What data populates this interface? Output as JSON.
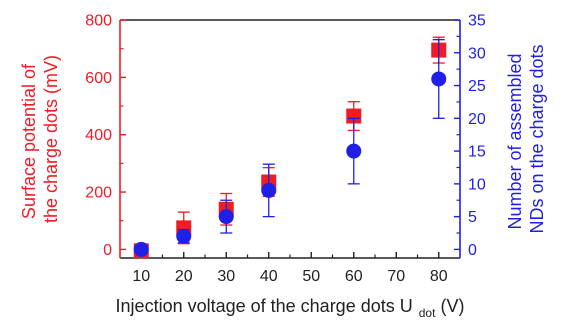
{
  "chart_data": {
    "type": "scatter",
    "x_axis": {
      "label_main": "Injection voltage of the charge dots U",
      "label_sub": "dot",
      "label_unit": " (V)",
      "range": [
        5,
        85
      ],
      "ticks": [
        10,
        20,
        30,
        40,
        50,
        60,
        70,
        80
      ]
    },
    "y_left": {
      "label_lines": [
        "Surface potential of",
        "the charge dots (mV)"
      ],
      "range": [
        -30,
        800
      ],
      "ticks": [
        0,
        200,
        400,
        600,
        800
      ],
      "color": "#ee1c25"
    },
    "y_right": {
      "label_lines": [
        "Number of assembled",
        "NDs on the charge dots"
      ],
      "range": [
        -1.3125,
        35
      ],
      "ticks": [
        0,
        5,
        10,
        15,
        20,
        25,
        30,
        35
      ],
      "color": "#1f1fe6"
    },
    "series": [
      {
        "axis": "left",
        "marker": "square",
        "color": "#ee1c25",
        "points": [
          {
            "x": 10,
            "y": -5,
            "err": 15
          },
          {
            "x": 20,
            "y": 75,
            "err": 55
          },
          {
            "x": 30,
            "y": 140,
            "err": 55
          },
          {
            "x": 40,
            "y": 235,
            "err": 50
          },
          {
            "x": 60,
            "y": 465,
            "err": 50
          },
          {
            "x": 80,
            "y": 695,
            "err": 45
          }
        ]
      },
      {
        "axis": "right",
        "marker": "circle",
        "color": "#1f1fe6",
        "points": [
          {
            "x": 10,
            "y": 0,
            "err": 0.5
          },
          {
            "x": 20,
            "y": 2,
            "err": 1
          },
          {
            "x": 30,
            "y": 5,
            "err": 2.5
          },
          {
            "x": 40,
            "y": 9,
            "err": 4
          },
          {
            "x": 60,
            "y": 15,
            "err": 5
          },
          {
            "x": 80,
            "y": 26,
            "err": 6
          }
        ]
      }
    ]
  }
}
